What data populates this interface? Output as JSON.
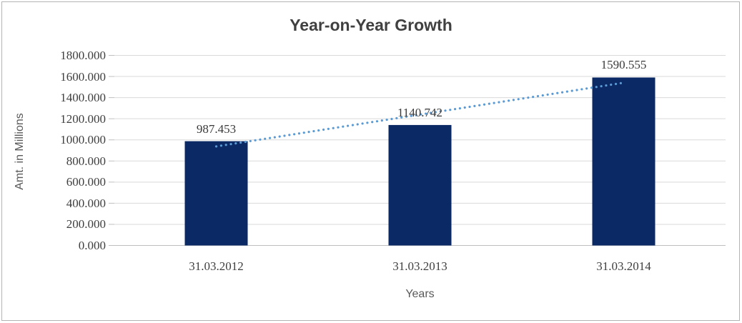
{
  "chart_data": {
    "type": "bar",
    "title": "Year-on-Year Growth",
    "categories": [
      "31.03.2012",
      "31.03.2013",
      "31.03.2014"
    ],
    "values": [
      987.453,
      1140.742,
      1590.555
    ],
    "data_labels": [
      "987.453",
      "1140.742",
      "1590.555"
    ],
    "series": [
      {
        "name": "Amt. in Millions",
        "values": [
          987.453,
          1140.742,
          1590.555
        ]
      }
    ],
    "xlabel": "Years",
    "ylabel": "Amt. in Millions",
    "ylim": [
      0,
      1800
    ],
    "ytick_step": 200,
    "ytick_labels": [
      "1800.000",
      "1600.000",
      "1400.000",
      "1200.000",
      "1000.000",
      "800.000",
      "600.000",
      "400.000",
      "200.000",
      "0.000"
    ],
    "grid": true,
    "legend": "none",
    "trendline": {
      "type": "linear",
      "style": "dotted"
    },
    "colors": {
      "bar": "#0b2965",
      "trendline": "#5b9bd5",
      "gridline": "#d9d9d9",
      "axis_line": "#bfbfbf",
      "tick_mark": "#bfbfbf",
      "title_text": "#404040",
      "tick_text": "#3f3f3f",
      "axis_title_text": "#595959",
      "frame_border": "#b4b4b4"
    }
  }
}
